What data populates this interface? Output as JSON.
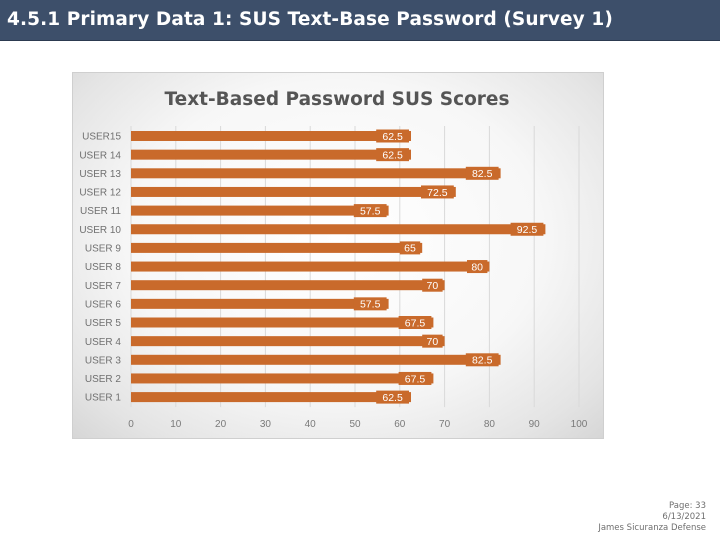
{
  "slide": {
    "title": "4.5.1 Primary Data 1: SUS Text-Base Password (Survey 1)"
  },
  "footer": {
    "page": "Page: 33",
    "date": "6/13/2021",
    "author": "James Sicuranza Defense"
  },
  "colors": {
    "header": "#3d4f6a",
    "bar": "#c96a2b",
    "label_bg": "#c96a2b",
    "label_text": "#ffffff"
  },
  "chart_data": {
    "type": "bar",
    "orientation": "horizontal",
    "title": "Text-Based Password SUS Scores",
    "categories": [
      "USER15",
      "USER 14",
      "USER 13",
      "USER 12",
      "USER 11",
      "USER 10",
      "USER 9",
      "USER 8",
      "USER 7",
      "USER 6",
      "USER 5",
      "USER 4",
      "USER 3",
      "USER 2",
      "USER 1"
    ],
    "values": [
      62.5,
      62.5,
      82.5,
      72.5,
      57.5,
      92.5,
      65,
      80,
      70,
      57.5,
      67.5,
      70,
      82.5,
      67.5,
      62.5
    ],
    "value_labels": [
      "62.5",
      "62.5",
      "82.5",
      "72.5",
      "57.5",
      "92.5",
      "65",
      "80",
      "70",
      "57.5",
      "67.5",
      "70",
      "82.5",
      "67.5",
      "62.5"
    ],
    "xlim": [
      0,
      100
    ],
    "x_ticks": [
      "0",
      "10",
      "20",
      "30",
      "40",
      "50",
      "60",
      "70",
      "80",
      "90",
      "100"
    ],
    "grid": true,
    "legend": "none",
    "data_labels": "inside-end"
  }
}
